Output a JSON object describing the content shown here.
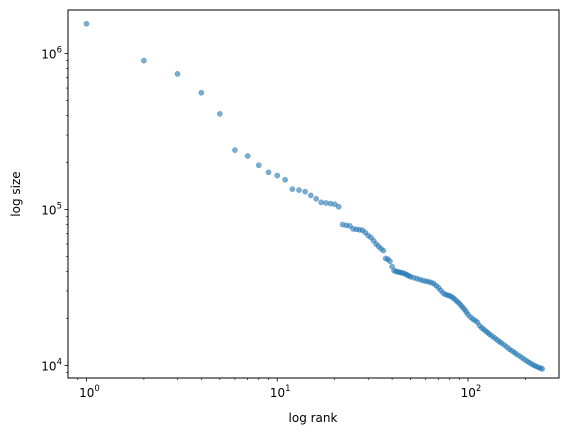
{
  "chart_data": {
    "type": "scatter",
    "title": "",
    "xlabel": "log rank",
    "ylabel": "log size",
    "xscale": "log",
    "yscale": "log",
    "xlim": [
      0.8,
      300
    ],
    "ylim": [
      8300,
      1900000
    ],
    "grid": false,
    "marker_color": "#1f77b4",
    "marker_alpha": 0.6,
    "x_ticks": [
      {
        "value": 1,
        "base": "10",
        "exp": "0"
      },
      {
        "value": 10,
        "base": "10",
        "exp": "1"
      },
      {
        "value": 100,
        "base": "10",
        "exp": "2"
      }
    ],
    "y_ticks": [
      {
        "value": 10000,
        "base": "10",
        "exp": "4"
      },
      {
        "value": 100000,
        "base": "10",
        "exp": "5"
      },
      {
        "value": 1000000,
        "base": "10",
        "exp": "6"
      }
    ],
    "points": [
      [
        1,
        1550000
      ],
      [
        2,
        900000
      ],
      [
        3,
        740000
      ],
      [
        4,
        560000
      ],
      [
        5,
        410000
      ],
      [
        6,
        240000
      ],
      [
        7,
        220000
      ],
      [
        8,
        192000
      ],
      [
        9,
        173000
      ],
      [
        10,
        165000
      ],
      [
        11,
        155000
      ],
      [
        12,
        135000
      ],
      [
        13,
        133000
      ],
      [
        14,
        130000
      ],
      [
        15,
        123000
      ],
      [
        16,
        117000
      ],
      [
        17,
        111000
      ],
      [
        18,
        110000
      ],
      [
        19,
        109000
      ],
      [
        20,
        108000
      ],
      [
        21,
        104000
      ],
      [
        22,
        80000
      ],
      [
        23,
        79000
      ],
      [
        24,
        78500
      ],
      [
        25,
        75000
      ],
      [
        26,
        74500
      ],
      [
        27,
        74000
      ],
      [
        28,
        73500
      ],
      [
        29,
        71000
      ],
      [
        30,
        68000
      ],
      [
        31,
        66000
      ],
      [
        32,
        63000
      ],
      [
        33,
        60000
      ],
      [
        34,
        58000
      ],
      [
        35,
        56000
      ],
      [
        36,
        54500
      ],
      [
        37,
        48500
      ],
      [
        38,
        48000
      ],
      [
        39,
        46500
      ],
      [
        40,
        43000
      ],
      [
        41,
        40500
      ],
      [
        42,
        40000
      ],
      [
        43,
        39800
      ],
      [
        44,
        39500
      ],
      [
        45,
        39200
      ],
      [
        46,
        39000
      ],
      [
        47,
        38500
      ],
      [
        48,
        38000
      ],
      [
        49,
        37500
      ],
      [
        50,
        37000
      ],
      [
        52,
        36500
      ],
      [
        54,
        36000
      ],
      [
        56,
        35500
      ],
      [
        58,
        35000
      ],
      [
        60,
        34700
      ],
      [
        62,
        34400
      ],
      [
        64,
        34000
      ],
      [
        66,
        33500
      ],
      [
        68,
        32500
      ],
      [
        70,
        31500
      ],
      [
        72,
        30300
      ],
      [
        74,
        29200
      ],
      [
        76,
        28500
      ],
      [
        78,
        28200
      ],
      [
        80,
        28000
      ],
      [
        82,
        27500
      ],
      [
        84,
        27000
      ],
      [
        86,
        26300
      ],
      [
        88,
        25600
      ],
      [
        90,
        25000
      ],
      [
        92,
        24200
      ],
      [
        94,
        23500
      ],
      [
        96,
        22800
      ],
      [
        98,
        22000
      ],
      [
        100,
        21200
      ],
      [
        103,
        20400
      ],
      [
        106,
        19800
      ],
      [
        109,
        19400
      ],
      [
        112,
        18900
      ],
      [
        115,
        18000
      ],
      [
        118,
        17400
      ],
      [
        121,
        17000
      ],
      [
        124,
        16600
      ],
      [
        127,
        16200
      ],
      [
        130,
        15800
      ],
      [
        134,
        15400
      ],
      [
        138,
        15000
      ],
      [
        142,
        14600
      ],
      [
        146,
        14200
      ],
      [
        150,
        13900
      ],
      [
        155,
        13500
      ],
      [
        160,
        13100
      ],
      [
        165,
        12700
      ],
      [
        170,
        12400
      ],
      [
        175,
        12100
      ],
      [
        180,
        11800
      ],
      [
        186,
        11500
      ],
      [
        192,
        11200
      ],
      [
        198,
        10900
      ],
      [
        204,
        10650
      ],
      [
        210,
        10400
      ],
      [
        216,
        10200
      ],
      [
        222,
        10000
      ],
      [
        228,
        9850
      ],
      [
        234,
        9700
      ],
      [
        240,
        9600
      ],
      [
        245,
        9500
      ]
    ]
  }
}
